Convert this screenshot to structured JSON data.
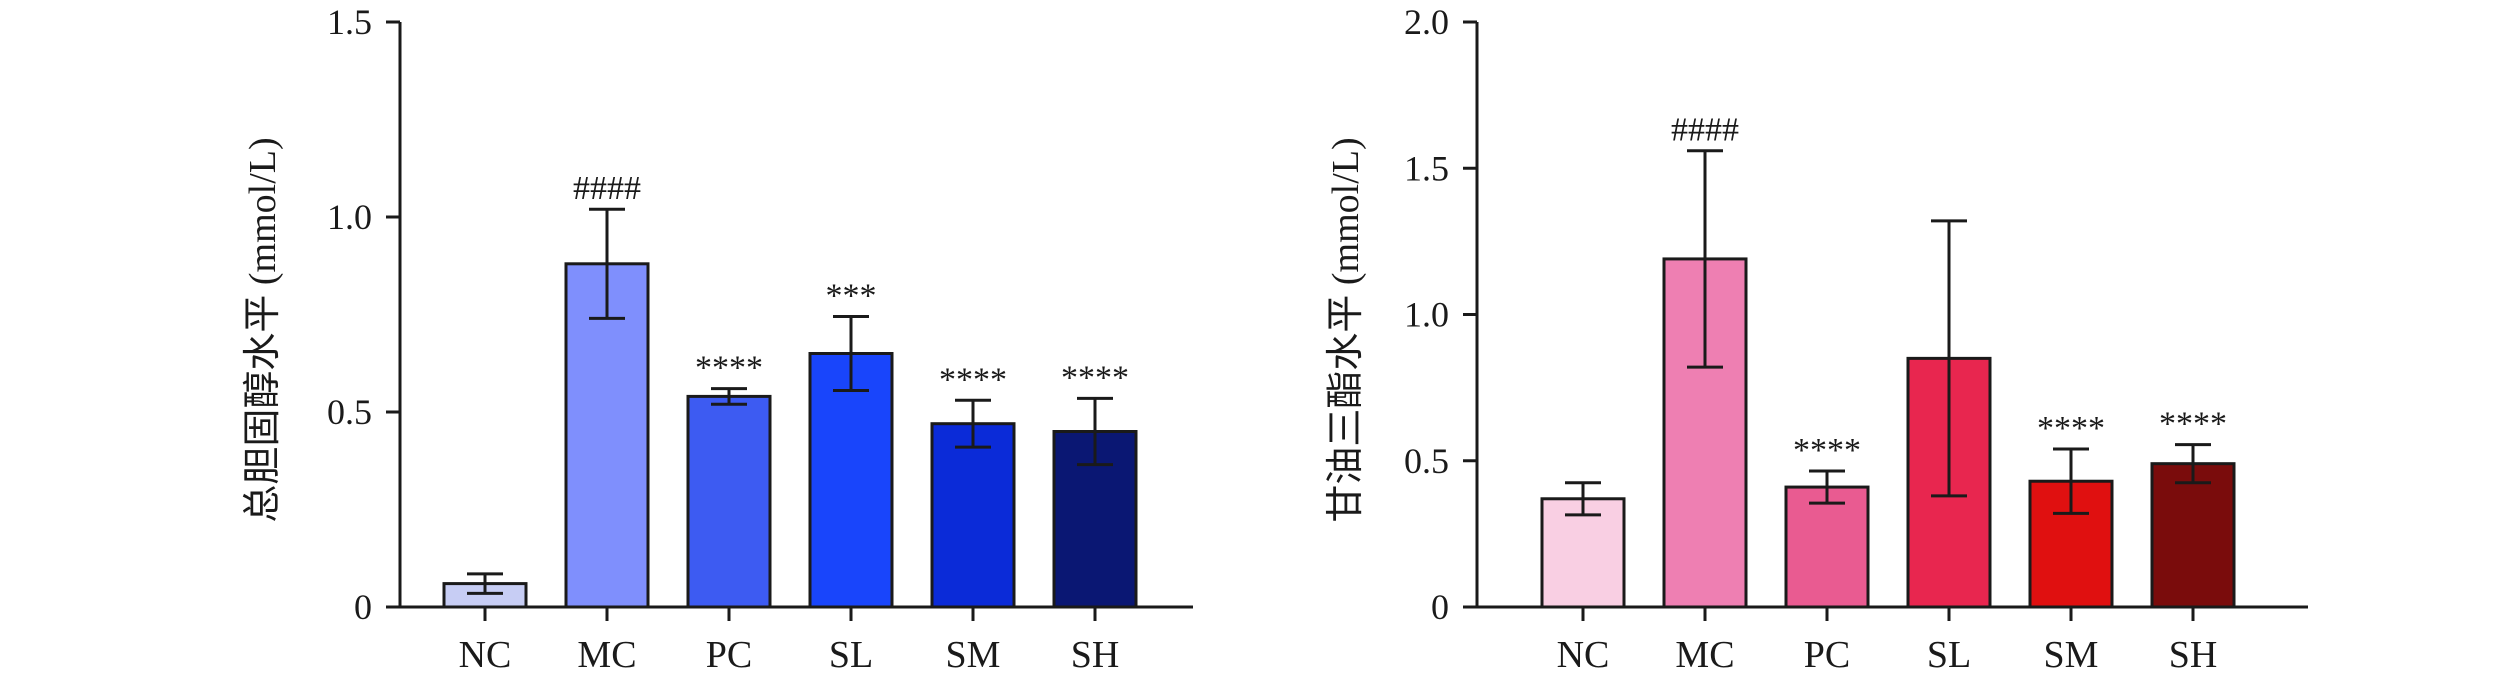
{
  "chart_data": [
    {
      "type": "bar",
      "title": "",
      "xlabel": "",
      "ylabel": "总胆固醇水平 (mmol/L)",
      "categories": [
        "NC",
        "MC",
        "PC",
        "SL",
        "SM",
        "SH"
      ],
      "values": [
        0.06,
        0.88,
        0.54,
        0.65,
        0.47,
        0.45
      ],
      "errors": [
        0.025,
        0.14,
        0.02,
        0.095,
        0.06,
        0.085
      ],
      "significance": [
        "",
        "####",
        "****",
        "***",
        "****",
        "****"
      ],
      "colors": [
        "#c7cdf4",
        "#7f8ffd",
        "#3d5bf2",
        "#1945fb",
        "#0b2bd8",
        "#0a1773"
      ],
      "ylim": [
        0,
        1.5
      ],
      "yticks": [
        0,
        0.5,
        1.0,
        1.5
      ],
      "ytick_labels": [
        "0",
        "0.5",
        "1.0",
        "1.5"
      ]
    },
    {
      "type": "bar",
      "title": "",
      "xlabel": "",
      "ylabel": "甘油三酯水平 (mmol/L)",
      "categories": [
        "NC",
        "MC",
        "PC",
        "SL",
        "SM",
        "SH"
      ],
      "values": [
        0.37,
        1.19,
        0.41,
        0.85,
        0.43,
        0.49
      ],
      "errors": [
        0.055,
        0.37,
        0.055,
        0.47,
        0.11,
        0.065
      ],
      "significance": [
        "",
        "####",
        "****",
        "",
        "****",
        "****"
      ],
      "colors": [
        "#f9cfe3",
        "#ee7fb2",
        "#e95b91",
        "#e8264f",
        "#e01010",
        "#7a0c0c"
      ],
      "ylim": [
        0,
        2.0
      ],
      "yticks": [
        0,
        0.5,
        1.0,
        1.5,
        2.0
      ],
      "ytick_labels": [
        "0",
        "0.5",
        "1.0",
        "1.5",
        "2.0"
      ]
    }
  ]
}
